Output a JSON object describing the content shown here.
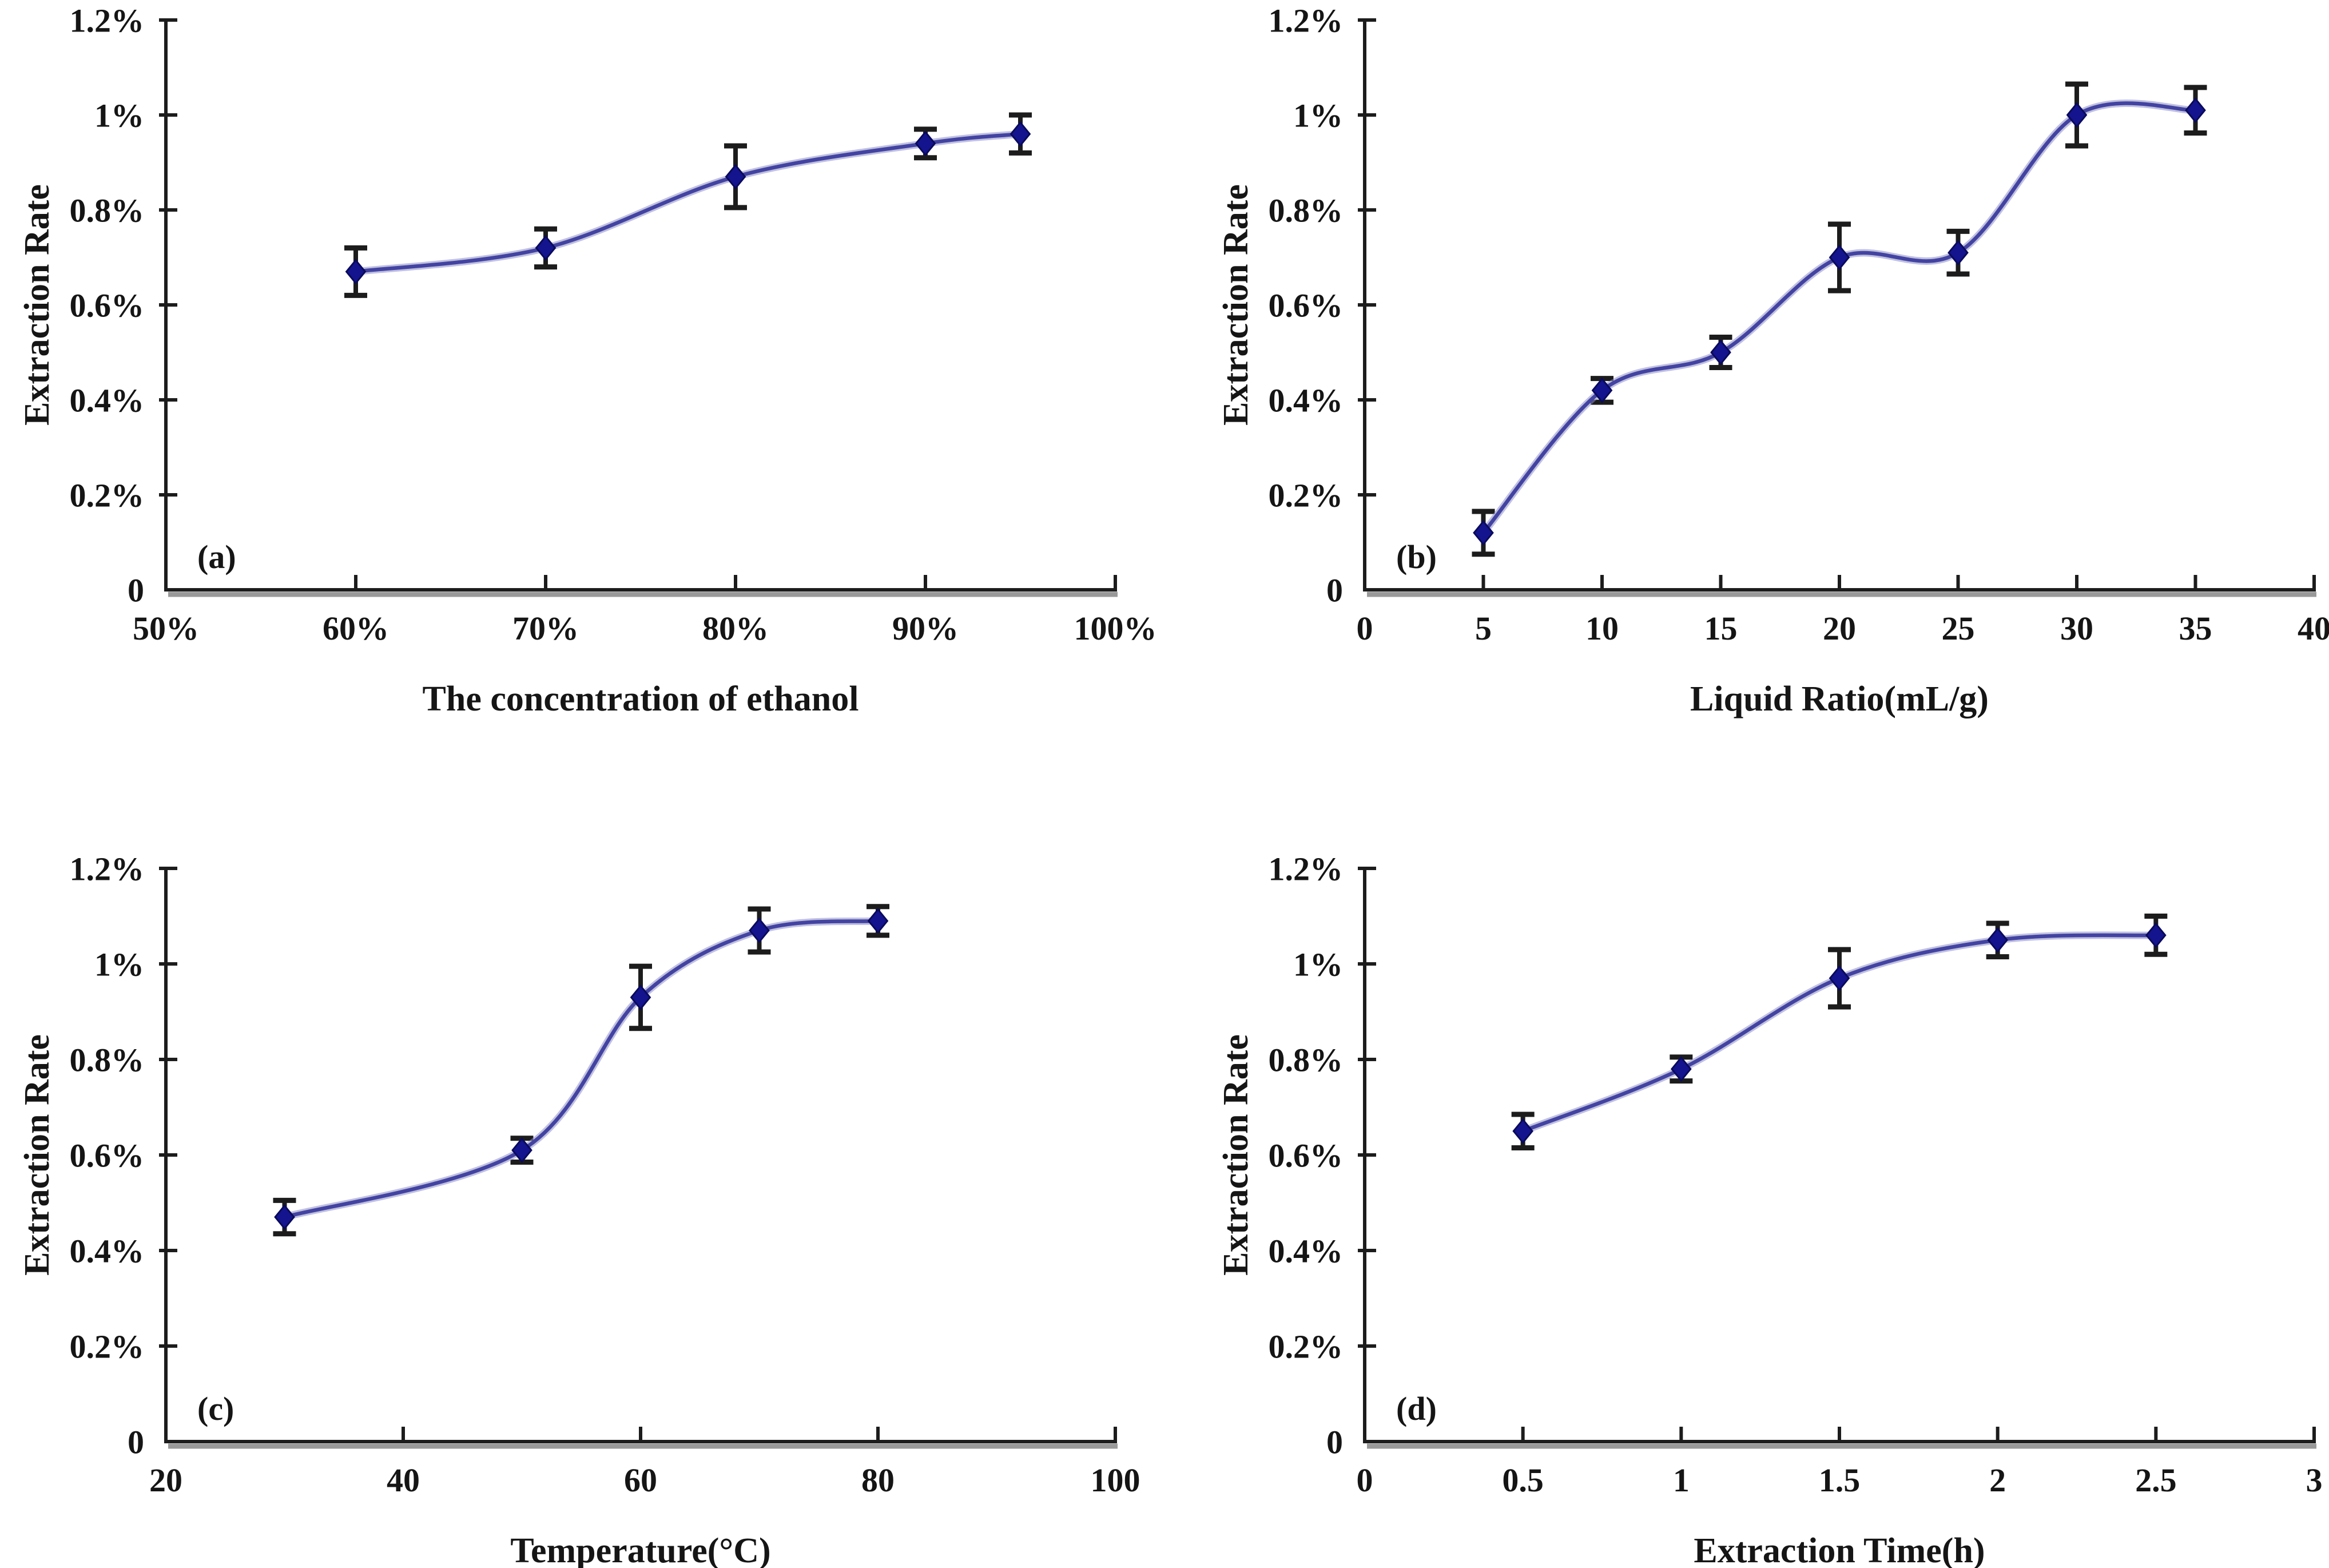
{
  "figure": {
    "background_color": "#ffffff",
    "line_color": "#4343a2",
    "line_halo_color": "#8d8dc9",
    "marker_color": "#14148f",
    "marker_edge_color": "#0a0a5c",
    "error_bar_color": "#1c1c1c",
    "axis_color": "#1c1c1c",
    "axis_shadow_color": "#999999",
    "text_color": "#151515"
  },
  "chart_data": [
    {
      "type": "line",
      "panel_label": "(a)",
      "title": "",
      "xlabel": "The concentration of ethanol",
      "ylabel": "Extraction Rate",
      "x": [
        60,
        70,
        80,
        90,
        95
      ],
      "y": [
        0.67,
        0.72,
        0.87,
        0.94,
        0.96
      ],
      "y_err": [
        0.05,
        0.04,
        0.065,
        0.03,
        0.04
      ],
      "xlim": [
        50,
        100
      ],
      "ylim": [
        0,
        1.2
      ],
      "x_tick_values": [
        50,
        60,
        70,
        80,
        90,
        100
      ],
      "x_tick_labels": [
        "50%",
        "60%",
        "70%",
        "80%",
        "90%",
        "100%"
      ],
      "y_tick_values": [
        0,
        0.2,
        0.4,
        0.6,
        0.8,
        1.0,
        1.2
      ],
      "y_tick_labels": [
        "0",
        "0.2%",
        "0.4%",
        "0.6%",
        "0.8%",
        "1%",
        "1.2%"
      ],
      "grid": false,
      "legend": "none",
      "smooth": true,
      "marker": "diamond"
    },
    {
      "type": "line",
      "panel_label": "(b)",
      "title": "",
      "xlabel": "Liquid Ratio(mL/g)",
      "ylabel": "Extraction Rate",
      "x": [
        5,
        10,
        15,
        20,
        25,
        30,
        35
      ],
      "y": [
        0.12,
        0.42,
        0.5,
        0.7,
        0.71,
        1.0,
        1.01
      ],
      "y_err": [
        0.045,
        0.025,
        0.032,
        0.07,
        0.045,
        0.065,
        0.048
      ],
      "xlim": [
        0,
        40
      ],
      "ylim": [
        0,
        1.2
      ],
      "x_tick_values": [
        0,
        5,
        10,
        15,
        20,
        25,
        30,
        35,
        40
      ],
      "x_tick_labels": [
        "0",
        "5",
        "10",
        "15",
        "20",
        "25",
        "30",
        "35",
        "40"
      ],
      "y_tick_values": [
        0,
        0.2,
        0.4,
        0.6,
        0.8,
        1.0,
        1.2
      ],
      "y_tick_labels": [
        "0",
        "0.2%",
        "0.4%",
        "0.6%",
        "0.8%",
        "1%",
        "1.2%"
      ],
      "grid": false,
      "legend": "none",
      "smooth": true,
      "marker": "diamond"
    },
    {
      "type": "line",
      "panel_label": "(c)",
      "title": "",
      "xlabel": "Temperature(°C)",
      "ylabel": "Extraction Rate",
      "x": [
        30,
        50,
        60,
        70,
        80
      ],
      "y": [
        0.47,
        0.61,
        0.93,
        1.07,
        1.09
      ],
      "y_err": [
        0.035,
        0.025,
        0.065,
        0.045,
        0.03
      ],
      "xlim": [
        20,
        100
      ],
      "ylim": [
        0,
        1.2
      ],
      "x_tick_values": [
        20,
        40,
        60,
        80,
        100
      ],
      "x_tick_labels": [
        "20",
        "40",
        "60",
        "80",
        "100"
      ],
      "y_tick_values": [
        0,
        0.2,
        0.4,
        0.6,
        0.8,
        1.0,
        1.2
      ],
      "y_tick_labels": [
        "0",
        "0.2%",
        "0.4%",
        "0.6%",
        "0.8%",
        "1%",
        "1.2%"
      ],
      "grid": false,
      "legend": "none",
      "smooth": true,
      "marker": "diamond"
    },
    {
      "type": "line",
      "panel_label": "(d)",
      "title": "",
      "xlabel": "Extraction Time(h)",
      "ylabel": "Extraction Rate",
      "x": [
        0.5,
        1,
        1.5,
        2,
        2.5
      ],
      "y": [
        0.65,
        0.78,
        0.97,
        1.05,
        1.06
      ],
      "y_err": [
        0.035,
        0.025,
        0.06,
        0.035,
        0.04
      ],
      "xlim": [
        0,
        3
      ],
      "ylim": [
        0,
        1.2
      ],
      "x_tick_values": [
        0,
        0.5,
        1,
        1.5,
        2,
        2.5,
        3
      ],
      "x_tick_labels": [
        "0",
        "0.5",
        "1",
        "1.5",
        "2",
        "2.5",
        "3"
      ],
      "y_tick_values": [
        0,
        0.2,
        0.4,
        0.6,
        0.8,
        1.0,
        1.2
      ],
      "y_tick_labels": [
        "0",
        "0.2%",
        "0.4%",
        "0.6%",
        "0.8%",
        "1%",
        "1.2%"
      ],
      "grid": false,
      "legend": "none",
      "smooth": true,
      "marker": "diamond"
    }
  ]
}
